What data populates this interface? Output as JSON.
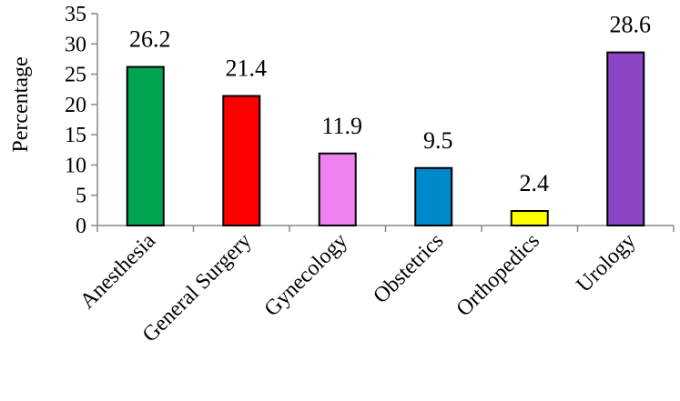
{
  "chart_data": {
    "type": "bar",
    "ylabel": "Percentage",
    "ylim": [
      0,
      35
    ],
    "yticks": [
      0,
      5,
      10,
      15,
      20,
      25,
      30,
      35
    ],
    "categories": [
      "Anesthesia",
      "General Surgery",
      "Gynecology",
      "Obstetrics",
      "Orthopedics",
      "Urology"
    ],
    "values": [
      26.2,
      21.4,
      11.9,
      9.5,
      2.4,
      28.6
    ],
    "data_labels": [
      "26.2",
      "21.4",
      "11.9",
      "9.5",
      "2.4",
      "28.6"
    ],
    "colors": [
      "#00a651",
      "#ff0000",
      "#ee82ee",
      "#0088cc",
      "#ffff00",
      "#8a44c4"
    ],
    "grid": false,
    "legend": "none"
  }
}
